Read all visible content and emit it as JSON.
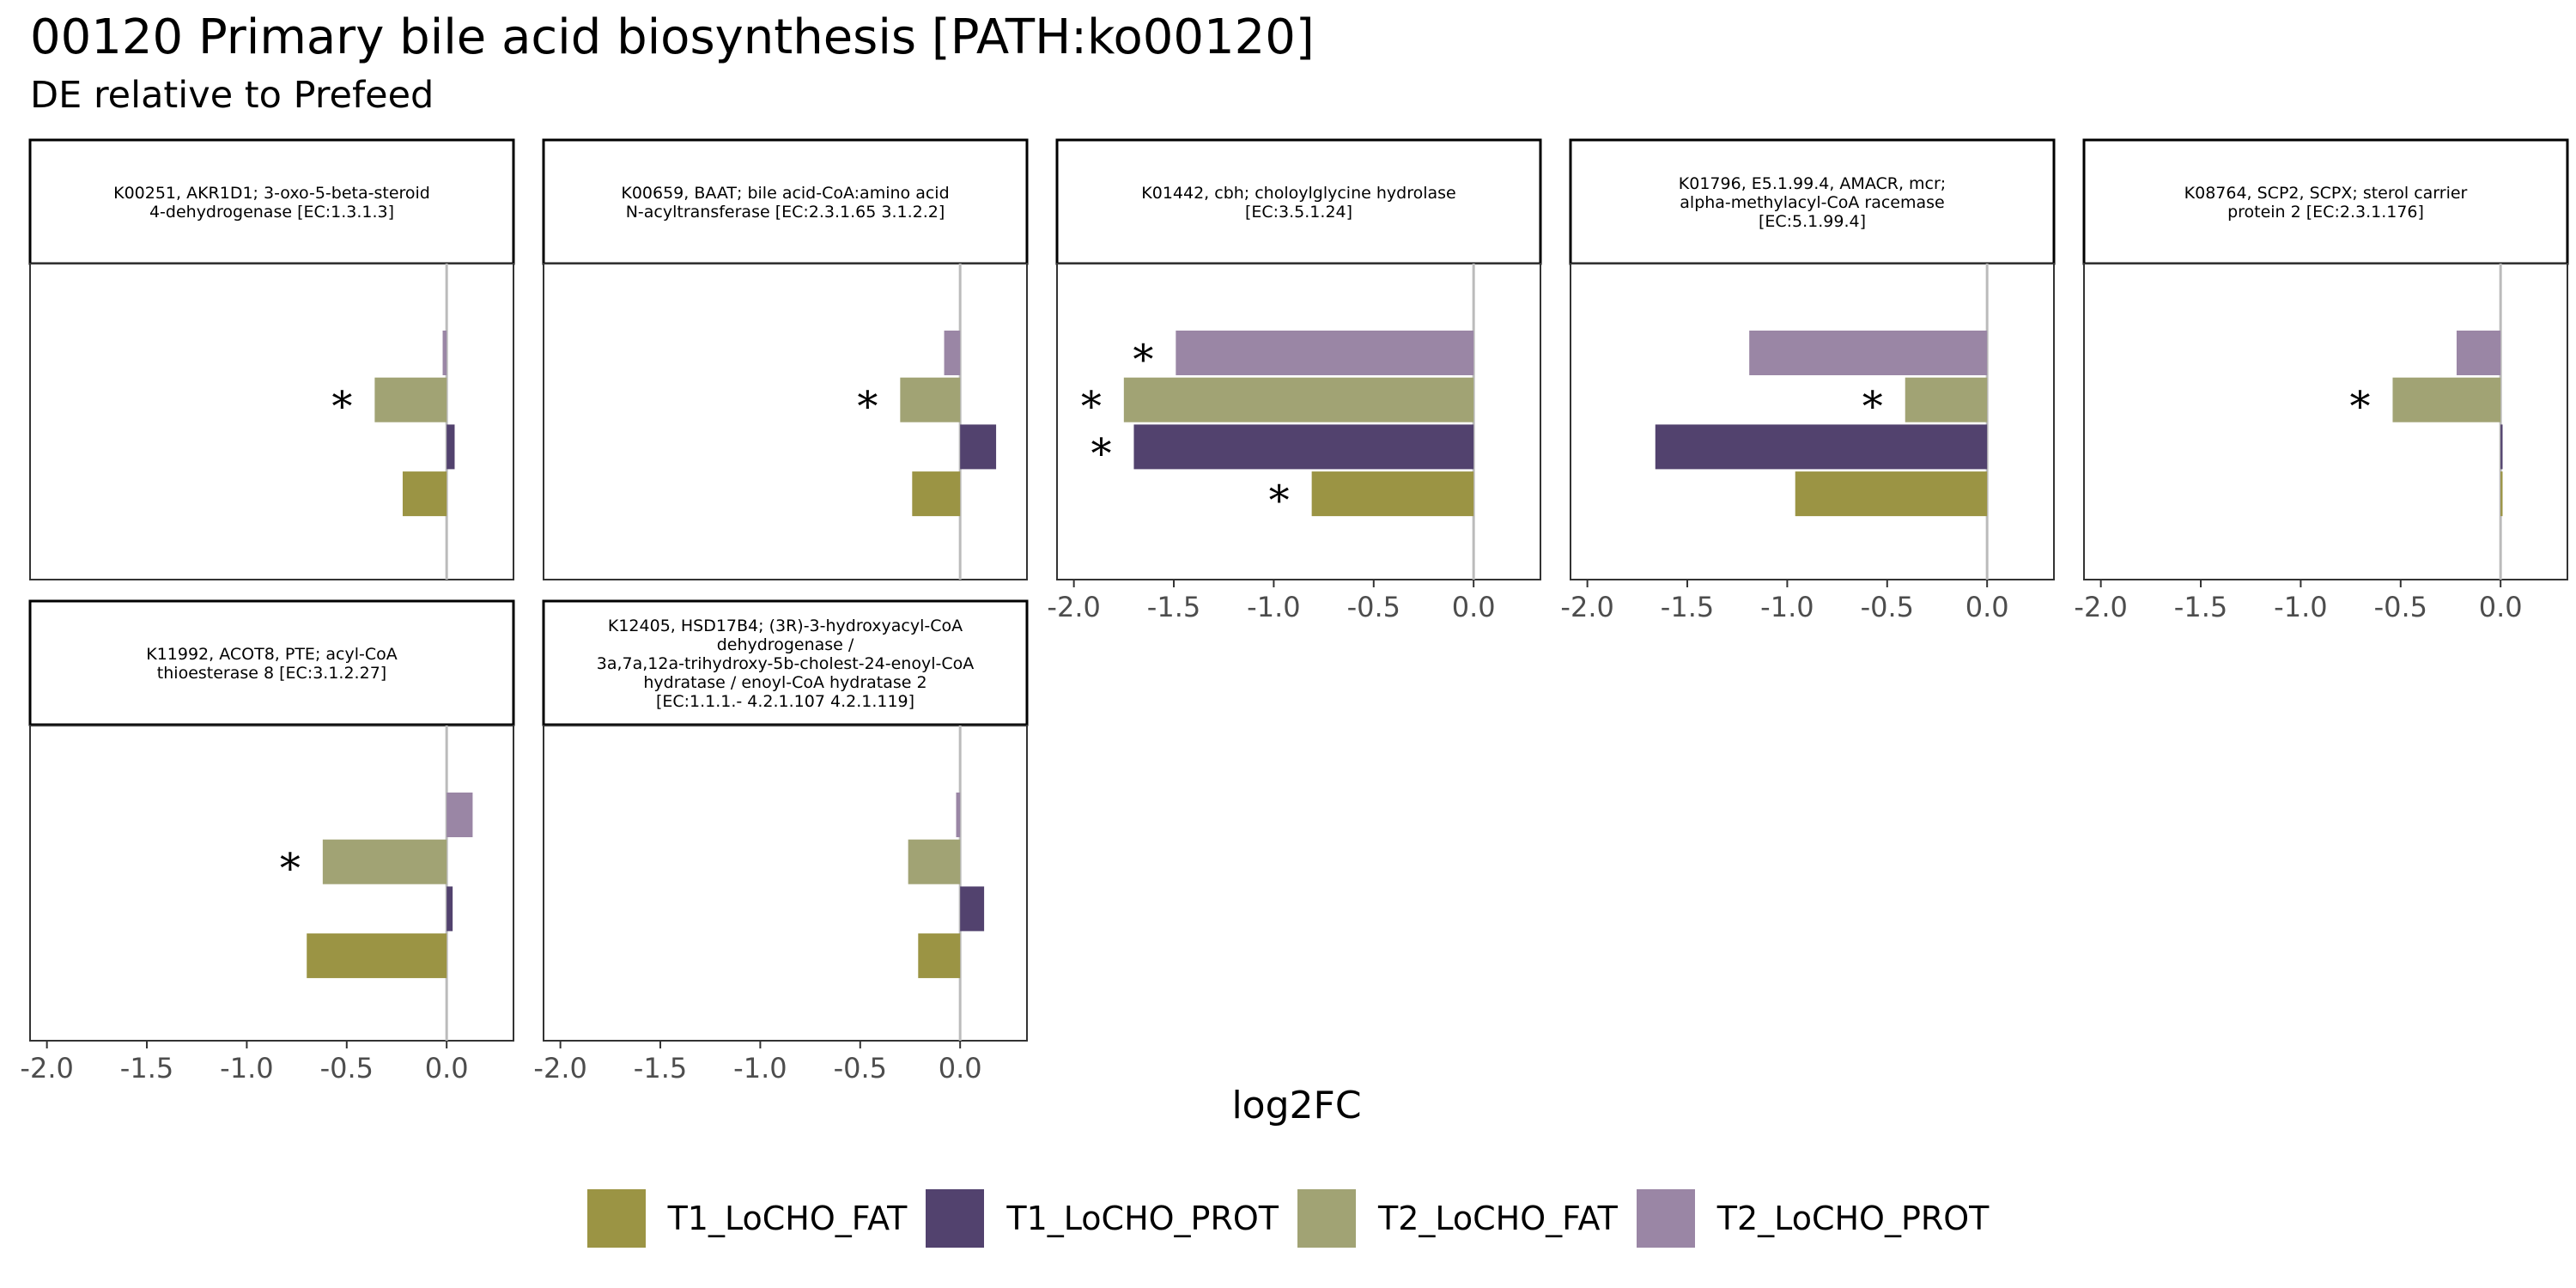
{
  "title": "00120 Primary bile acid biosynthesis [PATH:ko00120]",
  "subtitle": "DE relative to Prefeed",
  "colors": {
    "T1_LoCHO_FAT": "#9b9444",
    "T1_LoCHO_PROT": "#52426e",
    "T2_LoCHO_FAT": "#a1a374",
    "T2_LoCHO_PROT": "#9a86a5",
    "zero_line": "#bbbbbb",
    "panel_border": "#333333"
  },
  "chart_data": {
    "type": "bar",
    "orientation": "horizontal",
    "xlabel": "log2FC",
    "ylabel": "",
    "xlim": [
      -2.05,
      0.3
    ],
    "xticks": [
      -2.0,
      -1.5,
      -1.0,
      -0.5,
      0.0
    ],
    "xtick_labels": [
      "-2.0",
      "-1.5",
      "-1.0",
      "-0.5",
      "0.0"
    ],
    "zero_line": true,
    "grid": false,
    "significance_marker": "*",
    "legend_position": "bottom",
    "series_order": [
      "T2_LoCHO_PROT",
      "T2_LoCHO_FAT",
      "T1_LoCHO_PROT",
      "T1_LoCHO_FAT"
    ],
    "legend": [
      "T1_LoCHO_FAT",
      "T1_LoCHO_PROT",
      "T2_LoCHO_FAT",
      "T2_LoCHO_PROT"
    ],
    "panels": [
      {
        "strip": [
          "K00251, AKR1D1; 3-oxo-5-beta-steroid",
          "4-dehydrogenase [EC:1.3.1.3]"
        ],
        "values": {
          "T2_LoCHO_PROT": -0.02,
          "T2_LoCHO_FAT": -0.36,
          "T1_LoCHO_PROT": 0.04,
          "T1_LoCHO_FAT": -0.22
        },
        "significant": {
          "T2_LoCHO_PROT": false,
          "T2_LoCHO_FAT": true,
          "T1_LoCHO_PROT": false,
          "T1_LoCHO_FAT": false
        },
        "show_x_axis": false
      },
      {
        "strip": [
          "K00659, BAAT; bile acid-CoA:amino acid",
          "N-acyltransferase [EC:2.3.1.65 3.1.2.2]"
        ],
        "values": {
          "T2_LoCHO_PROT": -0.08,
          "T2_LoCHO_FAT": -0.3,
          "T1_LoCHO_PROT": 0.18,
          "T1_LoCHO_FAT": -0.24
        },
        "significant": {
          "T2_LoCHO_PROT": false,
          "T2_LoCHO_FAT": true,
          "T1_LoCHO_PROT": false,
          "T1_LoCHO_FAT": false
        },
        "show_x_axis": false
      },
      {
        "strip": [
          "K01442, cbh; choloylglycine hydrolase",
          "[EC:3.5.1.24]"
        ],
        "values": {
          "T2_LoCHO_PROT": -1.49,
          "T2_LoCHO_FAT": -1.75,
          "T1_LoCHO_PROT": -1.7,
          "T1_LoCHO_FAT": -0.81
        },
        "significant": {
          "T2_LoCHO_PROT": true,
          "T2_LoCHO_FAT": true,
          "T1_LoCHO_PROT": true,
          "T1_LoCHO_FAT": true
        },
        "show_x_axis": true
      },
      {
        "strip": [
          "K01796, E5.1.99.4, AMACR, mcr;",
          "alpha-methylacyl-CoA racemase",
          "[EC:5.1.99.4]"
        ],
        "values": {
          "T2_LoCHO_PROT": -1.19,
          "T2_LoCHO_FAT": -0.41,
          "T1_LoCHO_PROT": -1.66,
          "T1_LoCHO_FAT": -0.96
        },
        "significant": {
          "T2_LoCHO_PROT": false,
          "T2_LoCHO_FAT": true,
          "T1_LoCHO_PROT": false,
          "T1_LoCHO_FAT": false
        },
        "show_x_axis": true
      },
      {
        "strip": [
          "K08764, SCP2, SCPX; sterol carrier",
          "protein 2 [EC:2.3.1.176]"
        ],
        "values": {
          "T2_LoCHO_PROT": -0.22,
          "T2_LoCHO_FAT": -0.54,
          "T1_LoCHO_PROT": 0.01,
          "T1_LoCHO_FAT": 0.01
        },
        "significant": {
          "T2_LoCHO_PROT": false,
          "T2_LoCHO_FAT": true,
          "T1_LoCHO_PROT": false,
          "T1_LoCHO_FAT": false
        },
        "show_x_axis": true
      },
      {
        "strip": [
          "K11992, ACOT8, PTE; acyl-CoA",
          "thioesterase 8 [EC:3.1.2.27]"
        ],
        "values": {
          "T2_LoCHO_PROT": 0.13,
          "T2_LoCHO_FAT": -0.62,
          "T1_LoCHO_PROT": 0.03,
          "T1_LoCHO_FAT": -0.7
        },
        "significant": {
          "T2_LoCHO_PROT": false,
          "T2_LoCHO_FAT": true,
          "T1_LoCHO_PROT": false,
          "T1_LoCHO_FAT": false
        },
        "show_x_axis": true
      },
      {
        "strip": [
          "K12405, HSD17B4; (3R)-3-hydroxyacyl-CoA",
          "dehydrogenase /",
          "3a,7a,12a-trihydroxy-5b-cholest-24-enoyl-CoA",
          "hydratase / enoyl-CoA hydratase 2",
          "[EC:1.1.1.- 4.2.1.107 4.2.1.119]"
        ],
        "values": {
          "T2_LoCHO_PROT": -0.02,
          "T2_LoCHO_FAT": -0.26,
          "T1_LoCHO_PROT": 0.12,
          "T1_LoCHO_FAT": -0.21
        },
        "significant": {
          "T2_LoCHO_PROT": false,
          "T2_LoCHO_FAT": false,
          "T1_LoCHO_PROT": false,
          "T1_LoCHO_FAT": false
        },
        "show_x_axis": true
      }
    ]
  }
}
